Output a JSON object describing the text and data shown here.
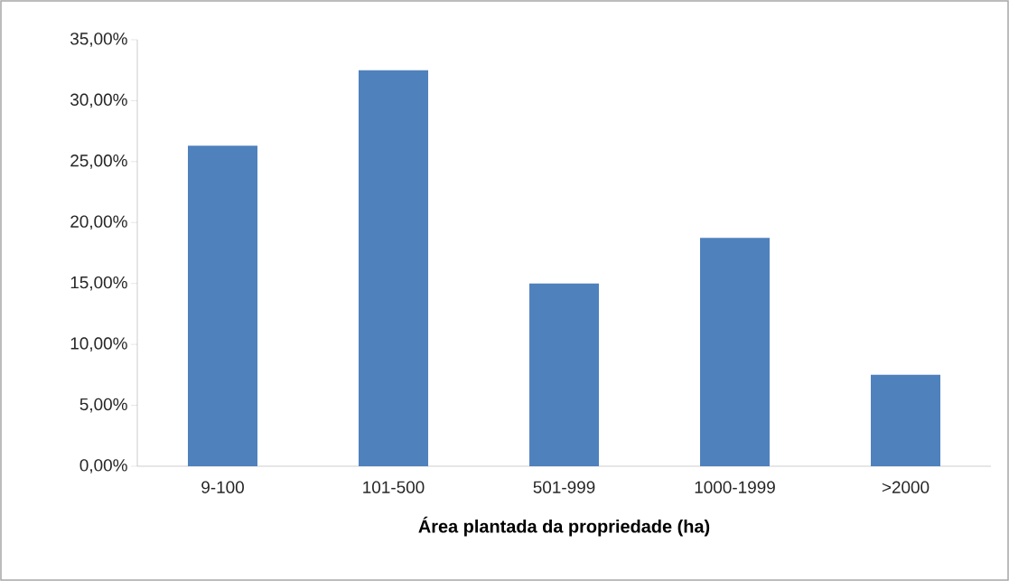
{
  "chart_data": {
    "type": "bar",
    "xlabel": "Área plantada da propriedade (ha)",
    "categories": [
      "9-100",
      "101-500",
      "501-999",
      "1000-1999",
      ">2000"
    ],
    "values": [
      26.3,
      32.5,
      15.0,
      18.75,
      7.5
    ],
    "color": "#4f81bd",
    "ylim": [
      0,
      35
    ],
    "yticks": [
      {
        "value": 0,
        "label": "0,00%"
      },
      {
        "value": 5,
        "label": "5,00%"
      },
      {
        "value": 10,
        "label": "10,00%"
      },
      {
        "value": 15,
        "label": "15,00%"
      },
      {
        "value": 20,
        "label": "20,00%"
      },
      {
        "value": 25,
        "label": "25,00%"
      },
      {
        "value": 30,
        "label": "30,00%"
      },
      {
        "value": 35,
        "label": "35,00%"
      }
    ],
    "grid": false
  }
}
